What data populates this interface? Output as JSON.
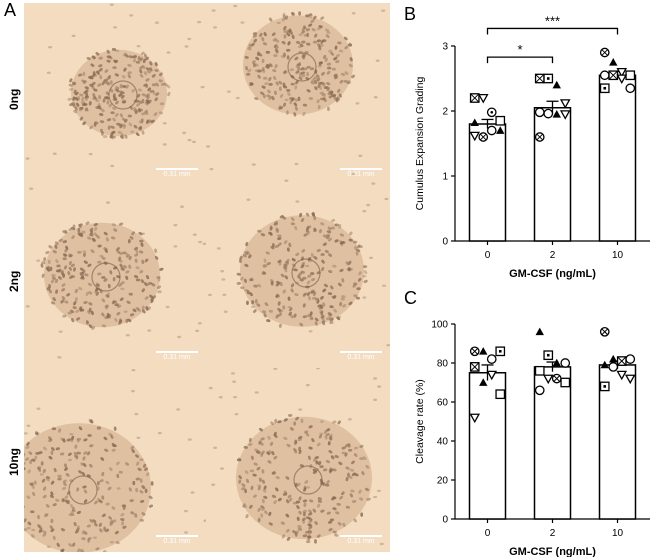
{
  "panel_a": {
    "letter": "A",
    "row_labels": [
      "0ng",
      "2ng",
      "10ng"
    ],
    "scale_label": "0.31 mm",
    "colors": {
      "background": "#f3dcc0",
      "cell": "#8a6a52"
    }
  },
  "chart_data": [
    {
      "type": "bar",
      "panel": "B",
      "categories": [
        "0",
        "2",
        "10"
      ],
      "values": [
        1.8,
        2.05,
        2.55
      ],
      "errors": [
        0.07,
        0.1,
        0.06
      ],
      "xlabel": "GM-CSF (ng/mL)",
      "ylabel": "Cumulus Expansion Grading",
      "ylim": [
        0,
        3
      ],
      "yticks": [
        "0",
        "1",
        "2",
        "3"
      ],
      "significance": [
        {
          "from": "0",
          "to": "2",
          "label": "*"
        },
        {
          "from": "0",
          "to": "10",
          "label": "***"
        }
      ],
      "points": [
        [
          {
            "m": "sqx",
            "y": 2.2
          },
          {
            "m": "tridn",
            "y": 2.2
          },
          {
            "m": "circdot",
            "y": 1.98
          },
          {
            "m": "sq",
            "y": 1.85
          },
          {
            "m": "tri",
            "y": 1.82
          },
          {
            "m": "circx",
            "y": 1.6
          },
          {
            "m": "circ",
            "y": 1.7
          },
          {
            "m": "tri",
            "y": 1.7
          },
          {
            "m": "tridn",
            "y": 1.62
          }
        ],
        [
          {
            "m": "sqx",
            "y": 2.5
          },
          {
            "m": "sqdot",
            "y": 2.5
          },
          {
            "m": "tri",
            "y": 2.4
          },
          {
            "m": "tridn",
            "y": 2.12
          },
          {
            "m": "circ",
            "y": 1.98
          },
          {
            "m": "circ",
            "y": 1.96
          },
          {
            "m": "tri",
            "y": 1.95
          },
          {
            "m": "tridn",
            "y": 1.95
          },
          {
            "m": "circx",
            "y": 1.6
          }
        ],
        [
          {
            "m": "circx",
            "y": 2.9
          },
          {
            "m": "tri",
            "y": 2.75
          },
          {
            "m": "tridn",
            "y": 2.6
          },
          {
            "m": "sq",
            "y": 2.55
          },
          {
            "m": "circ",
            "y": 2.55
          },
          {
            "m": "sqx",
            "y": 2.55
          },
          {
            "m": "tridn",
            "y": 2.5
          },
          {
            "m": "circ",
            "y": 2.35
          },
          {
            "m": "sqdot",
            "y": 2.35
          }
        ]
      ]
    },
    {
      "type": "bar",
      "panel": "C",
      "categories": [
        "0",
        "2",
        "10"
      ],
      "values": [
        75,
        78,
        79
      ],
      "errors": [
        4,
        2.5,
        2
      ],
      "xlabel": "GM-CSF (ng/mL)",
      "ylabel": "Cleavage rate (%)",
      "ylim": [
        0,
        100
      ],
      "yticks": [
        "0",
        "20",
        "40",
        "60",
        "80",
        "100"
      ],
      "points": [
        [
          {
            "m": "circx",
            "y": 86
          },
          {
            "m": "tri",
            "y": 86
          },
          {
            "m": "circ",
            "y": 82
          },
          {
            "m": "sqdot",
            "y": 86
          },
          {
            "m": "sqx",
            "y": 78
          },
          {
            "m": "tri",
            "y": 70
          },
          {
            "m": "tridn",
            "y": 74
          },
          {
            "m": "sq",
            "y": 64
          },
          {
            "m": "tridn",
            "y": 52
          }
        ],
        [
          {
            "m": "tri",
            "y": 96
          },
          {
            "m": "sqdot",
            "y": 84
          },
          {
            "m": "tri",
            "y": 80
          },
          {
            "m": "circ",
            "y": 80
          },
          {
            "m": "sq",
            "y": 76
          },
          {
            "m": "tridn",
            "y": 72
          },
          {
            "m": "circx",
            "y": 72
          },
          {
            "m": "sq",
            "y": 70
          },
          {
            "m": "circ",
            "y": 66
          }
        ],
        [
          {
            "m": "circx",
            "y": 96
          },
          {
            "m": "tri",
            "y": 82
          },
          {
            "m": "sqx",
            "y": 81
          },
          {
            "m": "circ",
            "y": 82
          },
          {
            "m": "tri",
            "y": 79
          },
          {
            "m": "circ",
            "y": 78
          },
          {
            "m": "tridn",
            "y": 74
          },
          {
            "m": "tridn",
            "y": 72
          },
          {
            "m": "sqdot",
            "y": 68
          }
        ]
      ]
    }
  ]
}
